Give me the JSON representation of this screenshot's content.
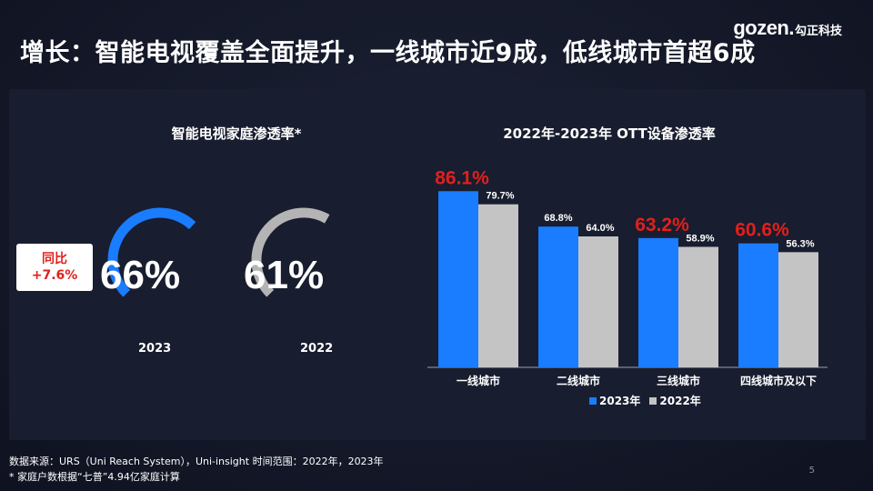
{
  "header": {
    "title": "增长：智能电视覆盖全面提升，一线城市近9成，低线城市首超6成",
    "logo_mark": "gozen.",
    "logo_cn": "勾正科技"
  },
  "left_panel": {
    "title": "智能电视家庭渗透率*",
    "yoy_label": "同比",
    "yoy_value": "+7.6%",
    "gauges": [
      {
        "year": "2023",
        "value_label": "66%",
        "value": 66,
        "color": "#1a7cff"
      },
      {
        "year": "2022",
        "value_label": "61%",
        "value": 61,
        "color": "#b4b4b4"
      }
    ]
  },
  "chart_data": {
    "type": "bar",
    "title": "2022年-2023年 OTT设备渗透率",
    "categories": [
      "一线城市",
      "二线城市",
      "三线城市",
      "四线城市及以下"
    ],
    "series": [
      {
        "name": "2023年",
        "values": [
          86.1,
          68.8,
          63.2,
          60.6
        ],
        "labels": [
          "86.1%",
          "68.8%",
          "63.2%",
          "60.6%"
        ],
        "color": "#1a7cff"
      },
      {
        "name": "2022年",
        "values": [
          79.7,
          64.0,
          58.9,
          56.3
        ],
        "labels": [
          "79.7%",
          "64.0%",
          "58.9%",
          "56.3%"
        ],
        "color": "#c4c4c4"
      }
    ],
    "highlight_color": "#e0201c",
    "highlighted_2023_indices": [
      0,
      2,
      3
    ],
    "ylim": [
      0,
      100
    ],
    "xlabel": "",
    "ylabel": "",
    "grid": false,
    "legend_position": "bottom"
  },
  "footer": {
    "source": "数据来源：URS（Uni Reach System），Uni-insight 时间范围：2022年，2023年",
    "note": "* 家庭户数根据“七普”4.94亿家庭计算",
    "page_number": "5"
  }
}
